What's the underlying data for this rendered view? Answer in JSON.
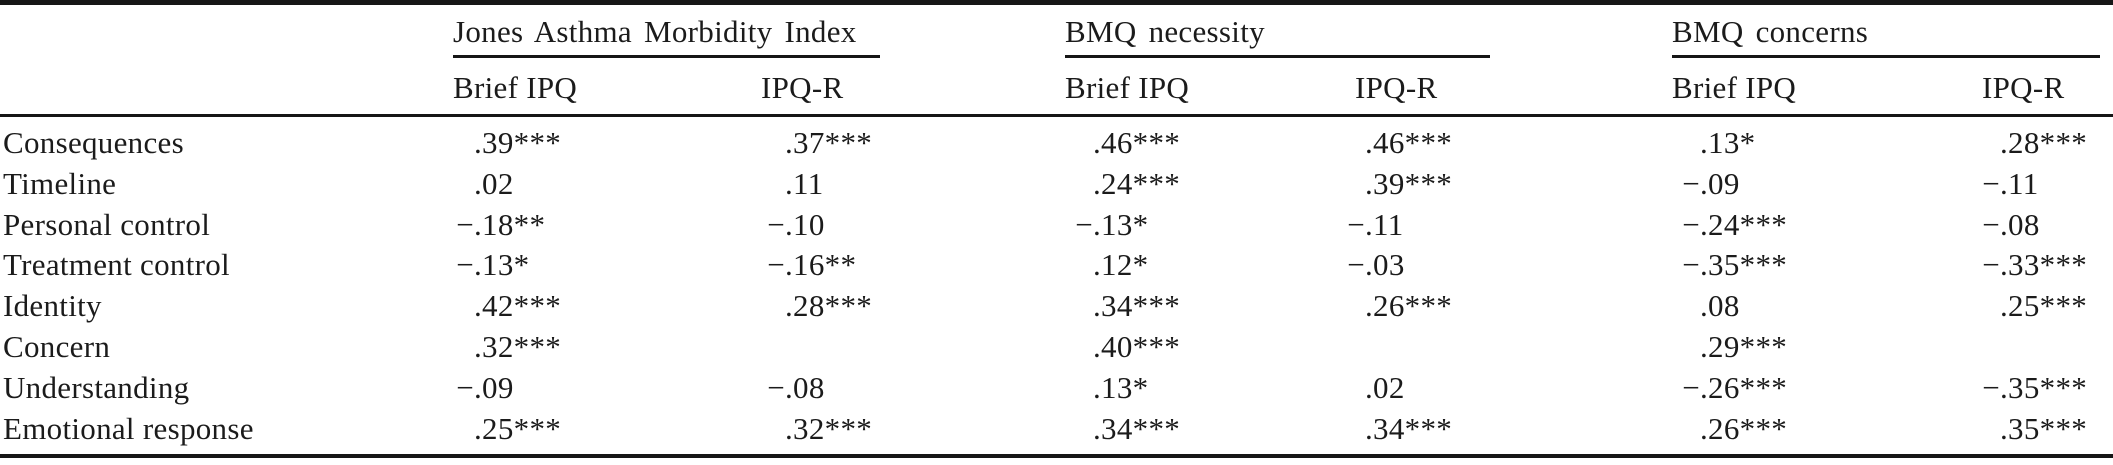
{
  "table": {
    "column_groups": [
      {
        "label": "Jones Asthma Morbidity Index",
        "sub_columns": [
          "Brief IPQ",
          "IPQ-R"
        ]
      },
      {
        "label": "BMQ necessity",
        "sub_columns": [
          "Brief IPQ",
          "IPQ-R"
        ]
      },
      {
        "label": "BMQ concerns",
        "sub_columns": [
          "Brief IPQ",
          "IPQ-R"
        ]
      }
    ],
    "rows": [
      {
        "label": "Consequences",
        "values": [
          ".39***",
          ".37***",
          ".46***",
          ".46***",
          ".13*",
          ".28***"
        ]
      },
      {
        "label": "Timeline",
        "values": [
          ".02",
          ".11",
          ".24***",
          ".39***",
          "−.09",
          "−.11"
        ]
      },
      {
        "label": "Personal control",
        "values": [
          "−.18**",
          "−.10",
          "−.13*",
          "−.11",
          "−.24***",
          "−.08"
        ]
      },
      {
        "label": "Treatment control",
        "values": [
          "−.13*",
          "−.16**",
          ".12*",
          "−.03",
          "−.35***",
          "−.33***"
        ]
      },
      {
        "label": "Identity",
        "values": [
          ".42***",
          ".28***",
          ".34***",
          ".26***",
          ".08",
          ".25***"
        ]
      },
      {
        "label": "Concern",
        "values": [
          ".32***",
          "",
          ".40***",
          "",
          ".29***",
          ""
        ]
      },
      {
        "label": "Understanding",
        "values": [
          "−.09",
          "−.08",
          ".13*",
          ".02",
          "−.26***",
          "−.35***"
        ]
      },
      {
        "label": "Emotional response",
        "values": [
          ".25***",
          ".32***",
          ".34***",
          ".34***",
          ".26***",
          ".35***"
        ]
      }
    ],
    "colors": {
      "text": "#1b1b1b",
      "rule": "#161616",
      "background": "#ffffff"
    }
  }
}
